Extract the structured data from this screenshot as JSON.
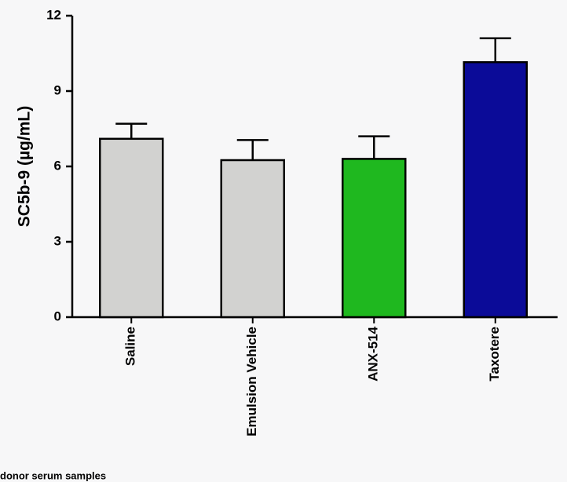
{
  "chart_data": {
    "type": "bar",
    "y_label": "SC5b-9 (µg/mL)",
    "categories": [
      "Saline",
      "Emulsion Vehicle",
      "ANX-514",
      "Taxotere"
    ],
    "values": [
      7.1,
      6.25,
      6.3,
      10.15
    ],
    "errors": [
      0.6,
      0.8,
      0.9,
      0.95
    ],
    "colors": [
      "#d2d2d0",
      "#d2d2d0",
      "#1fb81f",
      "#0b0b98"
    ],
    "ylim": [
      0,
      12
    ],
    "yticks": [
      0,
      3,
      6,
      9,
      12
    ],
    "note": "donor serum samples"
  }
}
